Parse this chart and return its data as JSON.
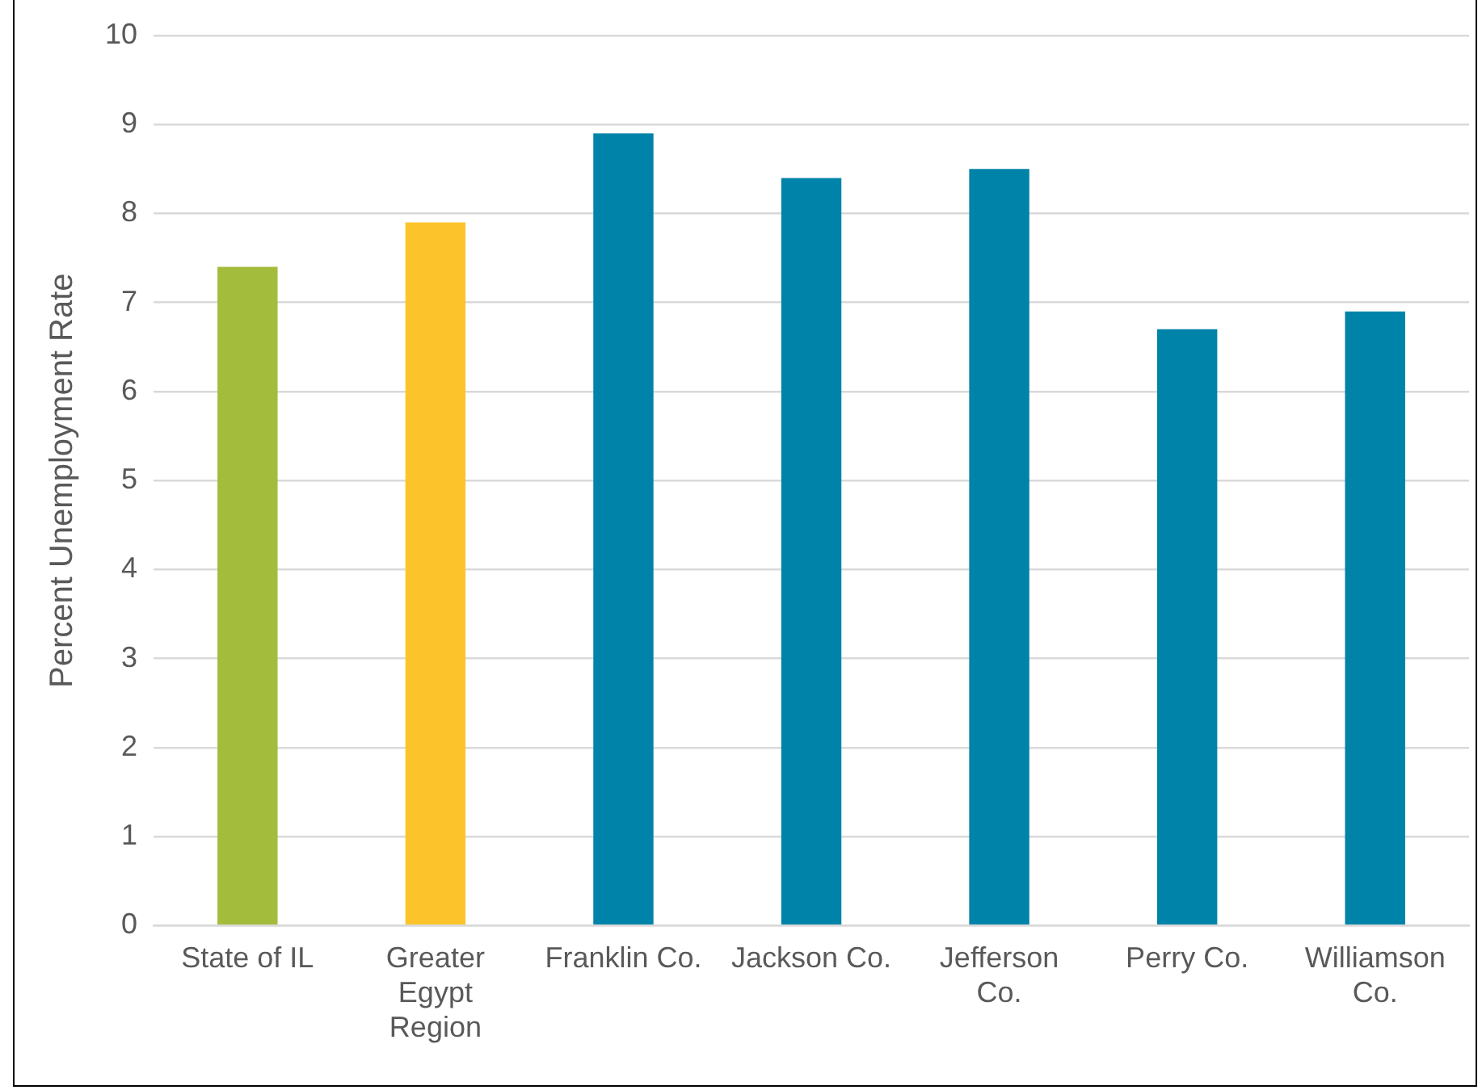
{
  "chart_data": {
    "type": "bar",
    "ylabel": "Percent Unemployment Rate",
    "categories": [
      "State of IL",
      "Greater Egypt Region",
      "Franklin Co.",
      "Jackson Co.",
      "Jefferson Co.",
      "Perry Co.",
      "Williamson Co."
    ],
    "values": [
      7.4,
      7.9,
      8.9,
      8.4,
      8.5,
      6.7,
      6.9
    ],
    "colors": [
      "#a3bc3b",
      "#fcc42a",
      "#0083a9",
      "#0083a9",
      "#0083a9",
      "#0083a9",
      "#0083a9"
    ],
    "ylim": [
      0,
      10
    ],
    "yticks": [
      0,
      1,
      2,
      3,
      4,
      5,
      6,
      7,
      8,
      9,
      10
    ],
    "grid": "y",
    "legend": false
  }
}
